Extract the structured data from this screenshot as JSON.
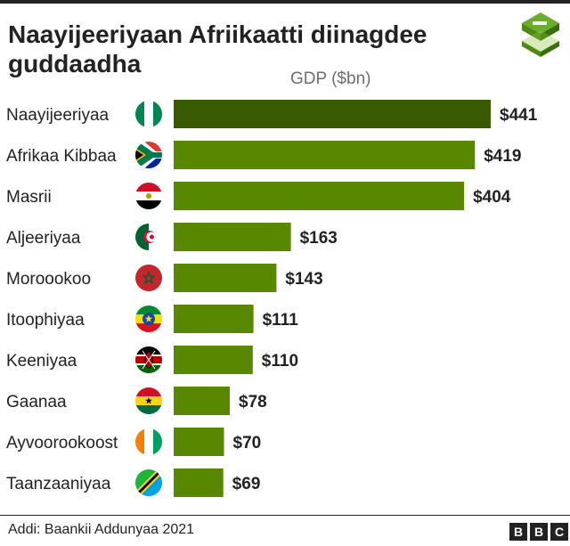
{
  "header": {
    "title": "Naayijeeriyaan Afriikaatti diinagdee guddaadha",
    "logo_icon": "green-isometric-stack-icon"
  },
  "chart_data": {
    "type": "bar",
    "orientation": "horizontal",
    "title": "Naayijeeriyaan Afriikaatti diinagdee guddaadha",
    "xlabel": "GDP ($bn)",
    "ylabel": "",
    "grid": false,
    "categories": [
      "Naayijeeriyaa",
      "Afrikaa Kibbaa",
      "Masrii",
      "Aljeeriyaa",
      "Moroookoo",
      "Itoophiyaa",
      "Keeniyaa",
      "Gaanaa",
      "Ayvoorookoost",
      "Taanzaaniyaa"
    ],
    "values": [
      441,
      419,
      404,
      163,
      143,
      111,
      110,
      78,
      70,
      69
    ],
    "value_labels": [
      "$441",
      "$419",
      "$404",
      "$163",
      "$143",
      "$111",
      "$110",
      "$78",
      "$70",
      "$69"
    ],
    "flag_icons": [
      "nigeria-flag-icon",
      "south-africa-flag-icon",
      "egypt-flag-icon",
      "algeria-flag-icon",
      "morocco-flag-icon",
      "ethiopia-flag-icon",
      "kenya-flag-icon",
      "ghana-flag-icon",
      "ivory-coast-flag-icon",
      "tanzania-flag-icon"
    ],
    "xlim": [
      0,
      441
    ],
    "colors": {
      "highlight": "#3a5a00",
      "bar": "#588700"
    }
  },
  "footer": {
    "source": "Addi: Baankii Addunyaa 2021",
    "brand_letters": [
      "B",
      "B",
      "C"
    ]
  }
}
